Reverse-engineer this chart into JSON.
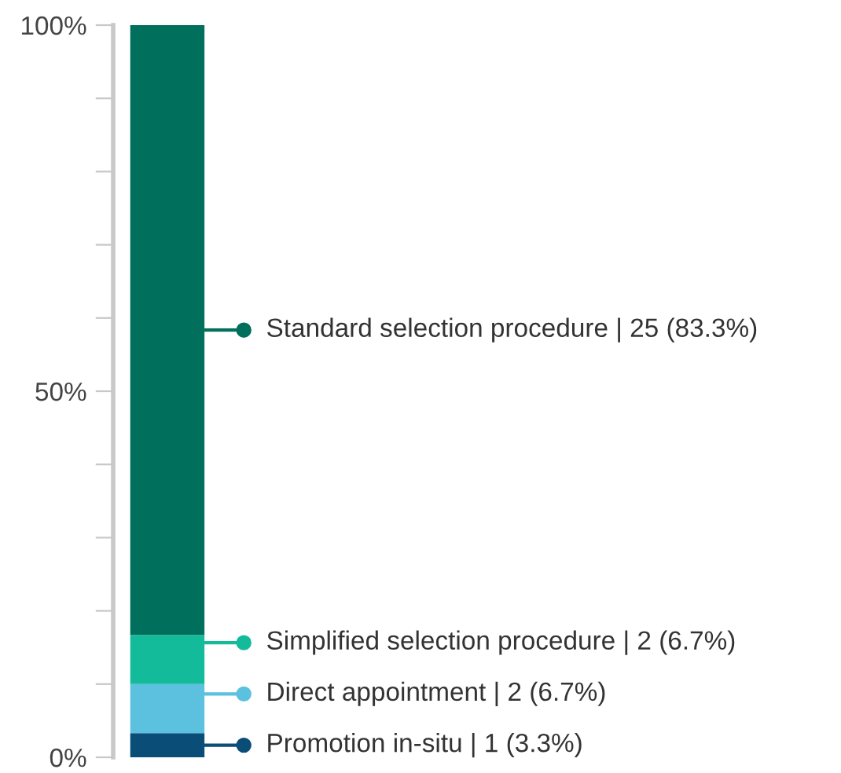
{
  "chart_data": {
    "type": "bar",
    "stacked": true,
    "categories": [
      null
    ],
    "series": [
      {
        "name": "Promotion in-situ | 1 (3.3%)",
        "color": "#0a4d76",
        "values": [
          3.3
        ]
      },
      {
        "name": "Direct appointment | 2 (6.7%)",
        "color": "#5bc1de",
        "values": [
          6.7
        ]
      },
      {
        "name": "Simplified selection procedure | 2 (6.7%)",
        "color": "#13bb9b",
        "values": [
          6.7
        ]
      },
      {
        "name": "Standard selection procedure | 25 (83.3%)",
        "color": "#006f5c",
        "values": [
          83.3
        ]
      }
    ],
    "ylim": [
      0,
      100
    ],
    "yticks": [
      {
        "value": 0,
        "label": "0%"
      },
      {
        "value": 10,
        "label": null
      },
      {
        "value": 20,
        "label": null
      },
      {
        "value": 30,
        "label": null
      },
      {
        "value": 40,
        "label": null
      },
      {
        "value": 50,
        "label": "50%"
      },
      {
        "value": 60,
        "label": null
      },
      {
        "value": 70,
        "label": null
      },
      {
        "value": 80,
        "label": null
      },
      {
        "value": 90,
        "label": null
      },
      {
        "value": 100,
        "label": "100%"
      }
    ],
    "grid": false,
    "legend": "right",
    "marker": "circle"
  }
}
